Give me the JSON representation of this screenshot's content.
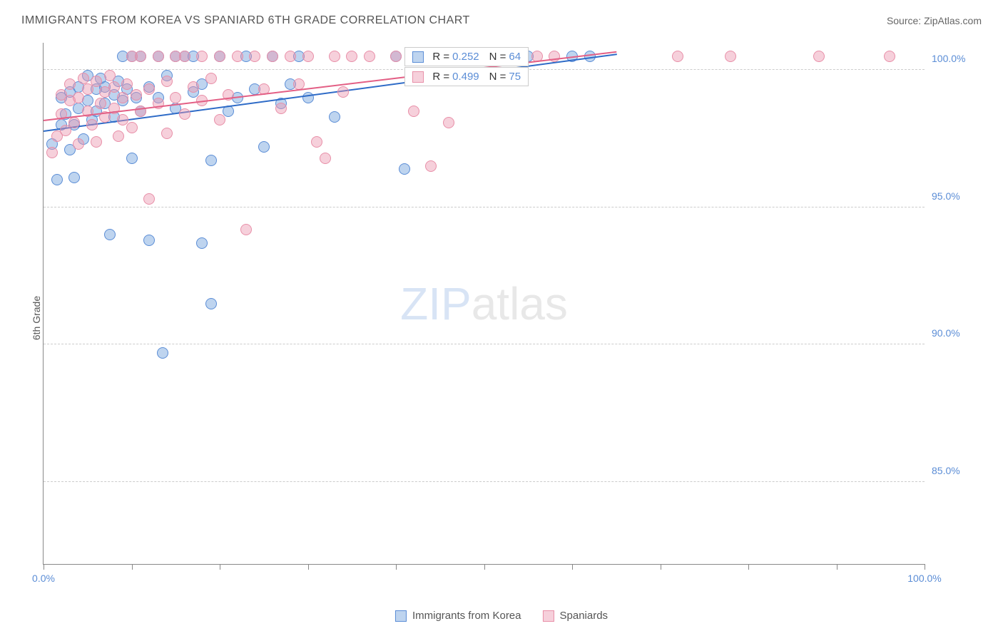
{
  "title": "IMMIGRANTS FROM KOREA VS SPANIARD 6TH GRADE CORRELATION CHART",
  "source": "Source: ZipAtlas.com",
  "y_axis_label": "6th Grade",
  "watermark_zip": "ZIP",
  "watermark_atlas": "atlas",
  "chart": {
    "type": "scatter",
    "background_color": "#ffffff",
    "grid_color": "#cccccc",
    "axis_color": "#888888",
    "xlim": [
      0,
      100
    ],
    "ylim": [
      82,
      101
    ],
    "y_ticks": [
      85,
      90,
      95,
      100
    ],
    "y_tick_labels": [
      "85.0%",
      "90.0%",
      "95.0%",
      "100.0%"
    ],
    "x_ticks": [
      0,
      10,
      20,
      30,
      40,
      50,
      60,
      70,
      80,
      90,
      100
    ],
    "x_tick_labels_shown": {
      "0": "0.0%",
      "100": "100.0%"
    },
    "series": [
      {
        "name": "Immigrants from Korea",
        "fill_color": "rgba(110, 160, 220, 0.45)",
        "stroke_color": "#5b8dd6",
        "trend_color": "#2e6bc7",
        "r": "0.252",
        "n": "64",
        "trend_start": {
          "x": 0,
          "y": 97.8
        },
        "trend_end": {
          "x": 65,
          "y": 100.6
        },
        "points": [
          {
            "x": 1,
            "y": 97.3
          },
          {
            "x": 1.5,
            "y": 96.0
          },
          {
            "x": 2,
            "y": 98.0
          },
          {
            "x": 2,
            "y": 99.0
          },
          {
            "x": 2.5,
            "y": 98.4
          },
          {
            "x": 3,
            "y": 97.1
          },
          {
            "x": 3,
            "y": 99.2
          },
          {
            "x": 3.5,
            "y": 98.0
          },
          {
            "x": 3.5,
            "y": 96.1
          },
          {
            "x": 4,
            "y": 98.6
          },
          {
            "x": 4,
            "y": 99.4
          },
          {
            "x": 4.5,
            "y": 97.5
          },
          {
            "x": 5,
            "y": 98.9
          },
          {
            "x": 5,
            "y": 99.8
          },
          {
            "x": 5.5,
            "y": 98.2
          },
          {
            "x": 6,
            "y": 99.3
          },
          {
            "x": 6,
            "y": 98.5
          },
          {
            "x": 6.5,
            "y": 99.7
          },
          {
            "x": 7,
            "y": 98.8
          },
          {
            "x": 7,
            "y": 99.4
          },
          {
            "x": 7.5,
            "y": 94.0
          },
          {
            "x": 8,
            "y": 99.1
          },
          {
            "x": 8,
            "y": 98.3
          },
          {
            "x": 8.5,
            "y": 99.6
          },
          {
            "x": 9,
            "y": 100.5
          },
          {
            "x": 9,
            "y": 98.9
          },
          {
            "x": 9.5,
            "y": 99.3
          },
          {
            "x": 10,
            "y": 96.8
          },
          {
            "x": 10,
            "y": 100.5
          },
          {
            "x": 10.5,
            "y": 99.0
          },
          {
            "x": 11,
            "y": 98.5
          },
          {
            "x": 11,
            "y": 100.5
          },
          {
            "x": 12,
            "y": 99.4
          },
          {
            "x": 12,
            "y": 93.8
          },
          {
            "x": 13,
            "y": 100.5
          },
          {
            "x": 13,
            "y": 99.0
          },
          {
            "x": 13.5,
            "y": 89.7
          },
          {
            "x": 14,
            "y": 99.8
          },
          {
            "x": 15,
            "y": 100.5
          },
          {
            "x": 15,
            "y": 98.6
          },
          {
            "x": 16,
            "y": 100.5
          },
          {
            "x": 17,
            "y": 99.2
          },
          {
            "x": 17,
            "y": 100.5
          },
          {
            "x": 18,
            "y": 93.7
          },
          {
            "x": 18,
            "y": 99.5
          },
          {
            "x": 19,
            "y": 96.7
          },
          {
            "x": 19,
            "y": 91.5
          },
          {
            "x": 20,
            "y": 100.5
          },
          {
            "x": 21,
            "y": 98.5
          },
          {
            "x": 22,
            "y": 99.0
          },
          {
            "x": 23,
            "y": 100.5
          },
          {
            "x": 24,
            "y": 99.3
          },
          {
            "x": 25,
            "y": 97.2
          },
          {
            "x": 26,
            "y": 100.5
          },
          {
            "x": 27,
            "y": 98.8
          },
          {
            "x": 28,
            "y": 99.5
          },
          {
            "x": 29,
            "y": 100.5
          },
          {
            "x": 30,
            "y": 99.0
          },
          {
            "x": 33,
            "y": 98.3
          },
          {
            "x": 40,
            "y": 100.5
          },
          {
            "x": 41,
            "y": 96.4
          },
          {
            "x": 55,
            "y": 100.5
          },
          {
            "x": 60,
            "y": 100.5
          },
          {
            "x": 62,
            "y": 100.5
          }
        ]
      },
      {
        "name": "Spaniards",
        "fill_color": "rgba(235, 150, 175, 0.45)",
        "stroke_color": "#e88fa8",
        "trend_color": "#e35f85",
        "r": "0.499",
        "n": "75",
        "trend_start": {
          "x": 0,
          "y": 98.2
        },
        "trend_end": {
          "x": 65,
          "y": 100.7
        },
        "points": [
          {
            "x": 1,
            "y": 97.0
          },
          {
            "x": 1.5,
            "y": 97.6
          },
          {
            "x": 2,
            "y": 98.4
          },
          {
            "x": 2,
            "y": 99.1
          },
          {
            "x": 2.5,
            "y": 97.8
          },
          {
            "x": 3,
            "y": 98.9
          },
          {
            "x": 3,
            "y": 99.5
          },
          {
            "x": 3.5,
            "y": 98.1
          },
          {
            "x": 4,
            "y": 97.3
          },
          {
            "x": 4,
            "y": 99.0
          },
          {
            "x": 4.5,
            "y": 99.7
          },
          {
            "x": 5,
            "y": 98.5
          },
          {
            "x": 5,
            "y": 99.3
          },
          {
            "x": 5.5,
            "y": 98.0
          },
          {
            "x": 6,
            "y": 97.4
          },
          {
            "x": 6,
            "y": 99.6
          },
          {
            "x": 6.5,
            "y": 98.8
          },
          {
            "x": 7,
            "y": 99.2
          },
          {
            "x": 7,
            "y": 98.3
          },
          {
            "x": 7.5,
            "y": 99.8
          },
          {
            "x": 8,
            "y": 98.6
          },
          {
            "x": 8,
            "y": 99.4
          },
          {
            "x": 8.5,
            "y": 97.6
          },
          {
            "x": 9,
            "y": 99.0
          },
          {
            "x": 9,
            "y": 98.2
          },
          {
            "x": 9.5,
            "y": 99.5
          },
          {
            "x": 10,
            "y": 97.9
          },
          {
            "x": 10,
            "y": 100.5
          },
          {
            "x": 10.5,
            "y": 99.1
          },
          {
            "x": 11,
            "y": 98.5
          },
          {
            "x": 11,
            "y": 100.5
          },
          {
            "x": 12,
            "y": 99.3
          },
          {
            "x": 12,
            "y": 95.3
          },
          {
            "x": 13,
            "y": 100.5
          },
          {
            "x": 13,
            "y": 98.8
          },
          {
            "x": 14,
            "y": 99.6
          },
          {
            "x": 14,
            "y": 97.7
          },
          {
            "x": 15,
            "y": 100.5
          },
          {
            "x": 15,
            "y": 99.0
          },
          {
            "x": 16,
            "y": 98.4
          },
          {
            "x": 16,
            "y": 100.5
          },
          {
            "x": 17,
            "y": 99.4
          },
          {
            "x": 18,
            "y": 100.5
          },
          {
            "x": 18,
            "y": 98.9
          },
          {
            "x": 19,
            "y": 99.7
          },
          {
            "x": 20,
            "y": 100.5
          },
          {
            "x": 20,
            "y": 98.2
          },
          {
            "x": 21,
            "y": 99.1
          },
          {
            "x": 22,
            "y": 100.5
          },
          {
            "x": 23,
            "y": 94.2
          },
          {
            "x": 24,
            "y": 100.5
          },
          {
            "x": 25,
            "y": 99.3
          },
          {
            "x": 26,
            "y": 100.5
          },
          {
            "x": 27,
            "y": 98.6
          },
          {
            "x": 28,
            "y": 100.5
          },
          {
            "x": 29,
            "y": 99.5
          },
          {
            "x": 30,
            "y": 100.5
          },
          {
            "x": 31,
            "y": 97.4
          },
          {
            "x": 32,
            "y": 96.8
          },
          {
            "x": 33,
            "y": 100.5
          },
          {
            "x": 34,
            "y": 99.2
          },
          {
            "x": 35,
            "y": 100.5
          },
          {
            "x": 37,
            "y": 100.5
          },
          {
            "x": 40,
            "y": 100.5
          },
          {
            "x": 42,
            "y": 98.5
          },
          {
            "x": 44,
            "y": 96.5
          },
          {
            "x": 46,
            "y": 98.1
          },
          {
            "x": 48,
            "y": 100.5
          },
          {
            "x": 52,
            "y": 100.5
          },
          {
            "x": 56,
            "y": 100.5
          },
          {
            "x": 58,
            "y": 100.5
          },
          {
            "x": 72,
            "y": 100.5
          },
          {
            "x": 78,
            "y": 100.5
          },
          {
            "x": 88,
            "y": 100.5
          },
          {
            "x": 96,
            "y": 100.5
          }
        ]
      }
    ]
  },
  "legend_stats": {
    "r_label": "R =",
    "n_label": "N ="
  },
  "bottom_legend": [
    {
      "label": "Immigrants from Korea",
      "fill": "rgba(110,160,220,0.45)",
      "stroke": "#5b8dd6"
    },
    {
      "label": "Spaniards",
      "fill": "rgba(235,150,175,0.45)",
      "stroke": "#e88fa8"
    }
  ]
}
